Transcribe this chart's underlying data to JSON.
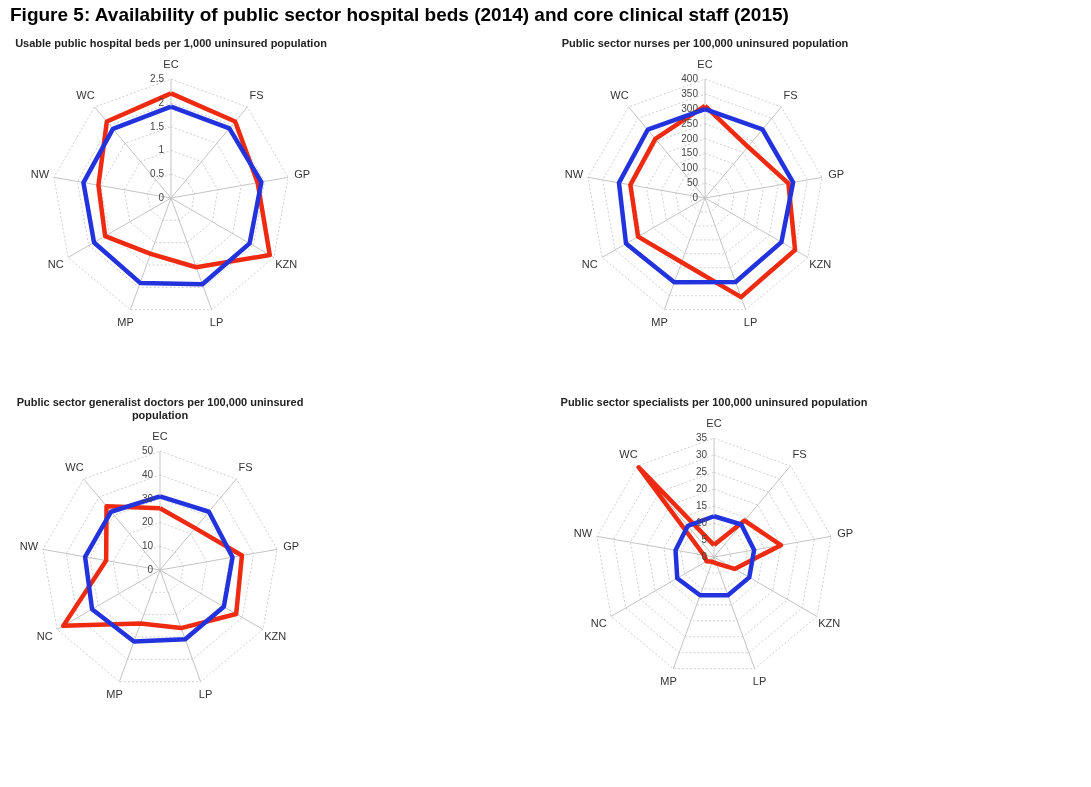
{
  "chart_data": [
    {
      "type": "other",
      "title": "Figure 5: Availability of public sector hospital beds (2014) and core clinical staff (2015)"
    },
    {
      "type": "radar",
      "title": "Usable public hospital beds per 1,000 uninsured population",
      "categories": [
        "EC",
        "FS",
        "GP",
        "KZN",
        "LP",
        "MP",
        "NC",
        "NW",
        "WC"
      ],
      "series": [
        {
          "color": "#ee2a10",
          "values": [
            2.2,
            2.1,
            1.85,
            2.4,
            1.55,
            1.25,
            1.6,
            1.55,
            2.1
          ]
        },
        {
          "color": "#2233dd",
          "values": [
            1.92,
            1.91,
            1.93,
            1.91,
            1.93,
            1.9,
            1.87,
            1.87,
            1.9
          ]
        }
      ],
      "ylim": [
        0,
        2.5
      ],
      "yticks": [
        0,
        0.5,
        1,
        1.5,
        2,
        2.5
      ],
      "grid": true
    },
    {
      "type": "radar",
      "title": "Public sector nurses per 100,000 uninsured population",
      "categories": [
        "EC",
        "FS",
        "GP",
        "KZN",
        "LP",
        "MP",
        "NC",
        "NW",
        "WC"
      ],
      "series": [
        {
          "color": "#ee2a10",
          "values": [
            310,
            225,
            285,
            350,
            355,
            230,
            260,
            255,
            260
          ]
        },
        {
          "color": "#2233dd",
          "values": [
            299,
            301,
            301,
            297,
            301,
            302,
            307,
            294,
            300
          ]
        }
      ],
      "ylim": [
        0,
        400
      ],
      "yticks": [
        0,
        50,
        100,
        150,
        200,
        250,
        300,
        350,
        400
      ],
      "grid": true
    },
    {
      "type": "radar",
      "title": "Public sector generalist doctors per 100,000 uninsured population",
      "categories": [
        "EC",
        "FS",
        "GP",
        "KZN",
        "LP",
        "MP",
        "NC",
        "NW",
        "WC"
      ],
      "series": [
        {
          "color": "#ee2a10",
          "values": [
            26,
            23,
            35,
            37,
            26,
            24,
            47,
            23,
            35
          ]
        },
        {
          "color": "#2233dd",
          "values": [
            31,
            32,
            31,
            31,
            31,
            32,
            33,
            32,
            32
          ]
        }
      ],
      "ylim": [
        0,
        50
      ],
      "yticks": [
        0,
        10,
        20,
        30,
        40,
        50
      ],
      "grid": true
    },
    {
      "type": "radar",
      "title": "Public sector specialists per 100,000 uninsured population",
      "categories": [
        "EC",
        "FS",
        "GP",
        "KZN",
        "LP",
        "MP",
        "NC",
        "NW",
        "WC"
      ],
      "series": [
        {
          "color": "#ee2a10",
          "values": [
            3.5,
            14,
            20,
            7,
            2,
            1.5,
            2.5,
            3,
            34.5
          ]
        },
        {
          "color": "#2233dd",
          "values": [
            12,
            12.5,
            12,
            12,
            12,
            12,
            12.5,
            11.5,
            12
          ]
        }
      ],
      "ylim": [
        0,
        35
      ],
      "yticks": [
        0,
        5,
        10,
        15,
        20,
        25,
        30,
        35
      ],
      "grid": true
    }
  ]
}
